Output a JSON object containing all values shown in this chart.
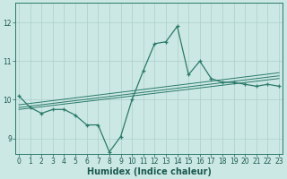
{
  "title": "",
  "xlabel": "Humidex (Indice chaleur)",
  "ylabel": "",
  "bg_color": "#cce8e4",
  "line_color": "#2a7a6a",
  "grid_color": "#aacfcb",
  "x_ticks": [
    0,
    1,
    2,
    3,
    4,
    5,
    6,
    7,
    8,
    9,
    10,
    11,
    12,
    13,
    14,
    15,
    16,
    17,
    18,
    19,
    20,
    21,
    22,
    23
  ],
  "y_ticks": [
    9,
    10,
    11,
    12
  ],
  "ylim": [
    8.6,
    12.5
  ],
  "xlim": [
    -0.3,
    23.3
  ],
  "main_x": [
    0,
    1,
    2,
    3,
    4,
    5,
    6,
    7,
    8,
    9,
    10,
    11,
    12,
    13,
    14,
    15,
    16,
    17,
    18,
    19,
    20,
    21,
    22,
    23
  ],
  "main_y": [
    10.1,
    9.8,
    9.65,
    9.75,
    9.75,
    9.6,
    9.35,
    9.35,
    8.65,
    9.05,
    10.0,
    10.75,
    11.45,
    11.5,
    11.9,
    10.65,
    11.0,
    10.55,
    10.45,
    10.45,
    10.4,
    10.35,
    10.4,
    10.35
  ],
  "trend1_x": [
    0,
    23
  ],
  "trend1_y": [
    9.75,
    10.55
  ],
  "trend2_x": [
    0,
    23
  ],
  "trend2_y": [
    9.8,
    10.62
  ],
  "trend3_x": [
    0,
    23
  ],
  "trend3_y": [
    9.87,
    10.7
  ],
  "marker": "+",
  "markersize": 3.5,
  "linewidth": 0.9,
  "trend_linewidth": 0.7,
  "font_color": "#1a5a50",
  "tick_fontsize": 5.5,
  "label_fontsize": 7.0
}
